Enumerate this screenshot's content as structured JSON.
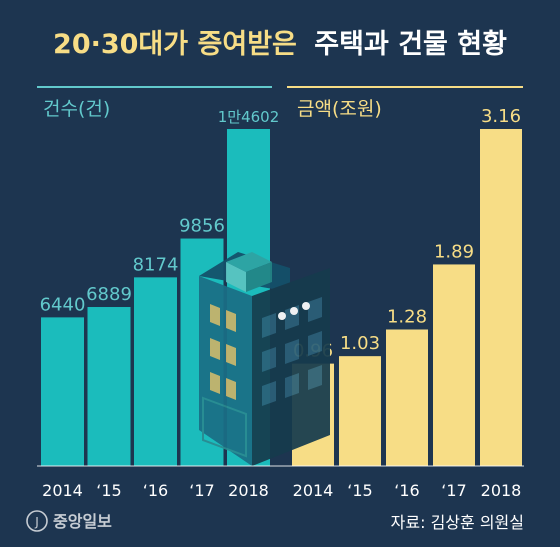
{
  "title": {
    "part1": "20·30대가 증여받은",
    "part2": "주택과 건물 현황"
  },
  "colors": {
    "background": "#1d3550",
    "title_accent": "#f7dd86",
    "title_main": "#ffffff",
    "count_bar": "#1bbcbc",
    "amount_bar": "#f7dd86",
    "count_label": "#62c9cc",
    "amount_label": "#f7dd86",
    "axis_text": "#ffffff",
    "footer_text": "#ffffff"
  },
  "chart_data": [
    {
      "type": "bar",
      "ylabel": "건수(건)",
      "categories": [
        "2014",
        "‘15",
        "‘16",
        "‘17",
        "2018"
      ],
      "values": [
        6440,
        6889,
        8174,
        9856,
        14602
      ],
      "data_labels": [
        "6440",
        "6889",
        "8174",
        "9856",
        "1만4602"
      ],
      "ylim": [
        0,
        14602
      ]
    },
    {
      "type": "bar",
      "ylabel": "금액(조원)",
      "categories": [
        "2014",
        "‘15",
        "‘16",
        "‘17",
        "2018"
      ],
      "values": [
        0.96,
        1.03,
        1.28,
        1.89,
        3.16
      ],
      "data_labels": [
        "0.96",
        "1.03",
        "1.28",
        "1.89",
        "3.16"
      ],
      "ylim": [
        0,
        3.16
      ]
    }
  ],
  "logo": "중앙일보",
  "source": "자료: 김상훈 의원실"
}
